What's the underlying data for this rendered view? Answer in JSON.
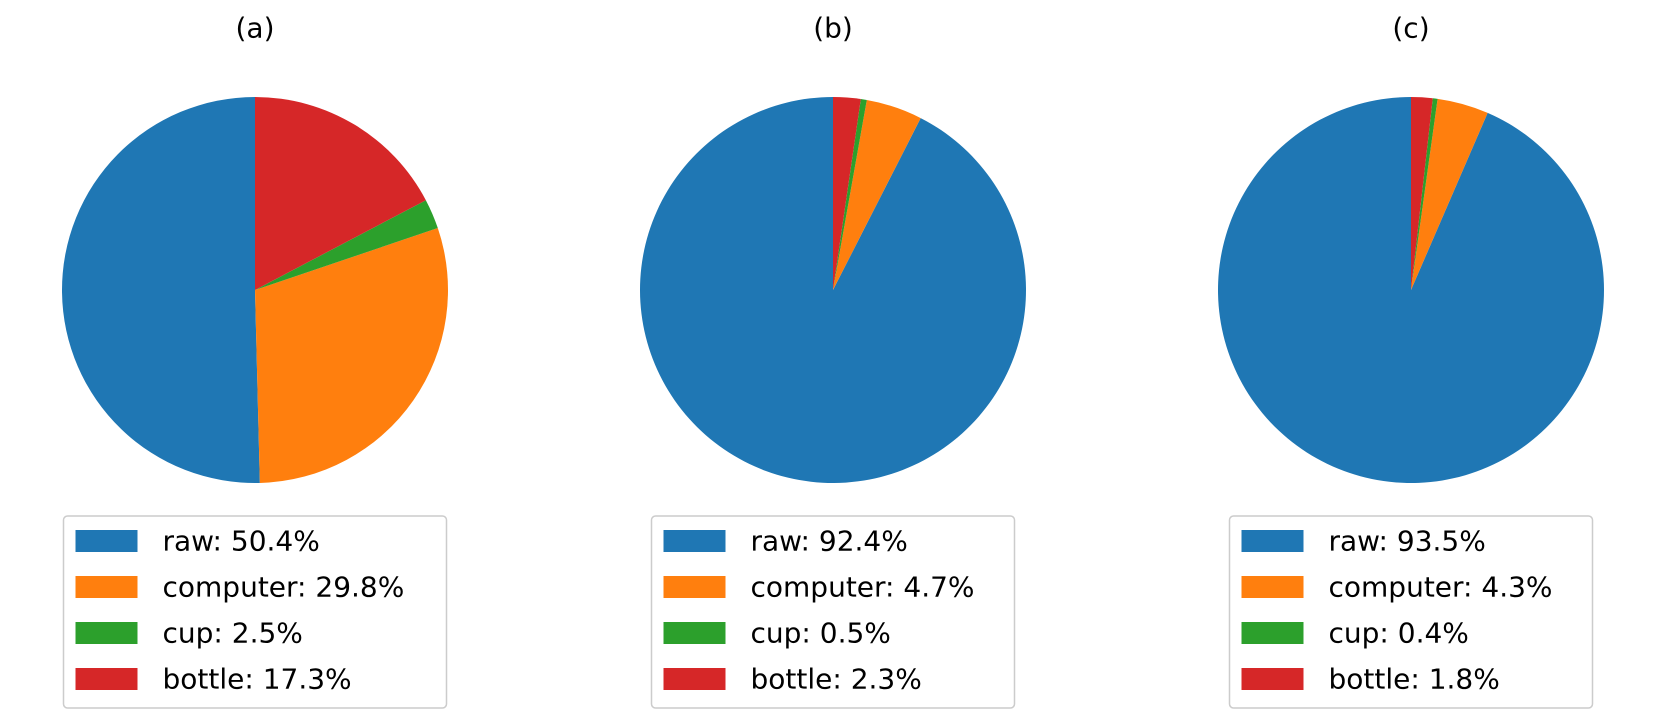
{
  "chart_data": [
    {
      "type": "pie",
      "title": "(a)",
      "slices": [
        {
          "name": "raw",
          "value": 50.4,
          "label": "raw: 50.4%",
          "color": "#1f77b4"
        },
        {
          "name": "computer",
          "value": 29.8,
          "label": "computer: 29.8%",
          "color": "#ff7f0e"
        },
        {
          "name": "cup",
          "value": 2.5,
          "label": "cup: 2.5%",
          "color": "#2ca02c"
        },
        {
          "name": "bottle",
          "value": 17.3,
          "label": "bottle: 17.3%",
          "color": "#d62728"
        }
      ],
      "start_angle": "top (90°)",
      "direction": "counterclockwise",
      "legend_position": "below"
    },
    {
      "type": "pie",
      "title": "(b)",
      "slices": [
        {
          "name": "raw",
          "value": 92.4,
          "label": "raw: 92.4%",
          "color": "#1f77b4"
        },
        {
          "name": "computer",
          "value": 4.7,
          "label": "computer: 4.7%",
          "color": "#ff7f0e"
        },
        {
          "name": "cup",
          "value": 0.5,
          "label": "cup: 0.5%",
          "color": "#2ca02c"
        },
        {
          "name": "bottle",
          "value": 2.3,
          "label": "bottle: 2.3%",
          "color": "#d62728"
        }
      ],
      "start_angle": "top (90°)",
      "direction": "counterclockwise",
      "legend_position": "below"
    },
    {
      "type": "pie",
      "title": "(c)",
      "slices": [
        {
          "name": "raw",
          "value": 93.5,
          "label": "raw: 93.5%",
          "color": "#1f77b4"
        },
        {
          "name": "computer",
          "value": 4.3,
          "label": "computer: 4.3%",
          "color": "#ff7f0e"
        },
        {
          "name": "cup",
          "value": 0.4,
          "label": "cup: 0.4%",
          "color": "#2ca02c"
        },
        {
          "name": "bottle",
          "value": 1.8,
          "label": "bottle: 1.8%",
          "color": "#d62728"
        }
      ],
      "start_angle": "top (90°)",
      "direction": "counterclockwise",
      "legend_position": "below"
    }
  ]
}
